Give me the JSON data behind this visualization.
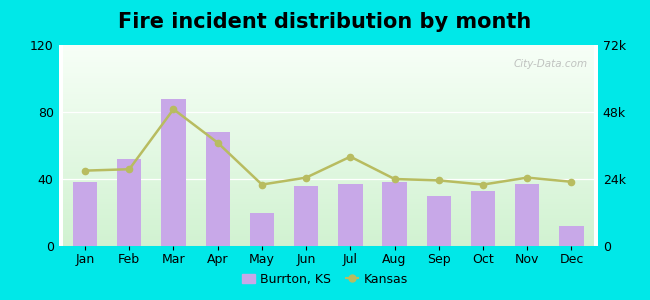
{
  "title": "Fire incident distribution by month",
  "months": [
    "Jan",
    "Feb",
    "Mar",
    "Apr",
    "May",
    "Jun",
    "Jul",
    "Aug",
    "Sep",
    "Oct",
    "Nov",
    "Dec"
  ],
  "burrton_values": [
    38,
    52,
    88,
    68,
    20,
    36,
    37,
    38,
    30,
    33,
    37,
    12
  ],
  "kansas_values": [
    27000,
    27500,
    49000,
    37000,
    22000,
    24500,
    32000,
    24000,
    23500,
    22000,
    24500,
    23000
  ],
  "bar_color": "#c8a8e8",
  "line_color": "#b8bc60",
  "bar_ylim": [
    0,
    120
  ],
  "bar_yticks": [
    0,
    40,
    80,
    120
  ],
  "line_ylim": [
    0,
    72000
  ],
  "line_yticks": [
    0,
    24000,
    48000,
    72000
  ],
  "line_ytick_labels": [
    "0",
    "24k",
    "48k",
    "72k"
  ],
  "outer_background": "#00e8e8",
  "title_fontsize": 15,
  "tick_fontsize": 9,
  "watermark_text": "City-Data.com",
  "legend_burrton": "Burrton, KS",
  "legend_kansas": "Kansas"
}
